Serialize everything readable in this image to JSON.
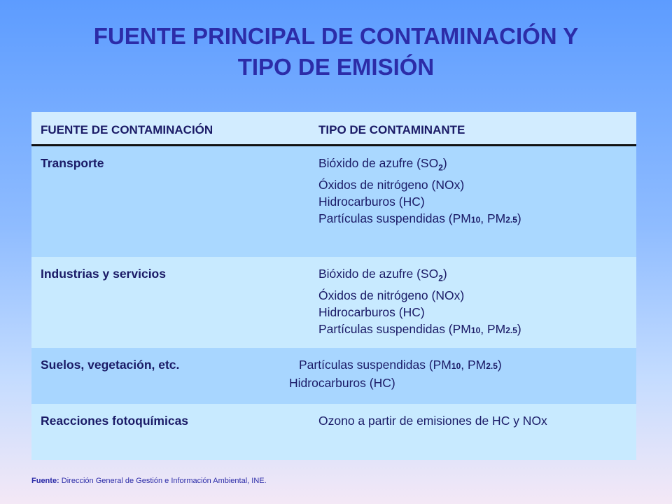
{
  "title": {
    "line1": "FUENTE PRINCIPAL DE CONTAMINACIÓN Y",
    "line2": "TIPO DE EMISIÓN"
  },
  "table": {
    "headers": [
      "FUENTE DE CONTAMINACIÓN",
      "TIPO DE CONTAMINANTE"
    ],
    "rows": [
      {
        "source": "Transporte",
        "items": [
          "Bióxido de azufre (SO",
          "Óxidos de nitrógeno (NOx)",
          "Hidrocarburos (HC)",
          "Partículas suspendidas (PM",
          ", PM"
        ]
      },
      {
        "source": "Industrias y servicios",
        "items": [
          "Bióxido de azufre (SO",
          "Óxidos de nitrógeno (NOx)",
          "Hidrocarburos (HC)",
          "Partículas suspendidas (PM",
          ", PM"
        ]
      },
      {
        "source": "Suelos, vegetación, etc.",
        "items": [
          "Partículas suspendidas (PM",
          ", PM",
          "Hidrocarburos (HC)"
        ]
      },
      {
        "source": "Reacciones fotoquímicas",
        "items": [
          "Ozono a partir de emisiones de HC y NOx"
        ]
      }
    ],
    "sub_so2": "2",
    "sub_pm10": "10",
    "sub_pm25": "2.5"
  },
  "footer": {
    "label": "Fuente:",
    "text": " Dirección General  de Gestión e Información Ambiental, INE."
  }
}
